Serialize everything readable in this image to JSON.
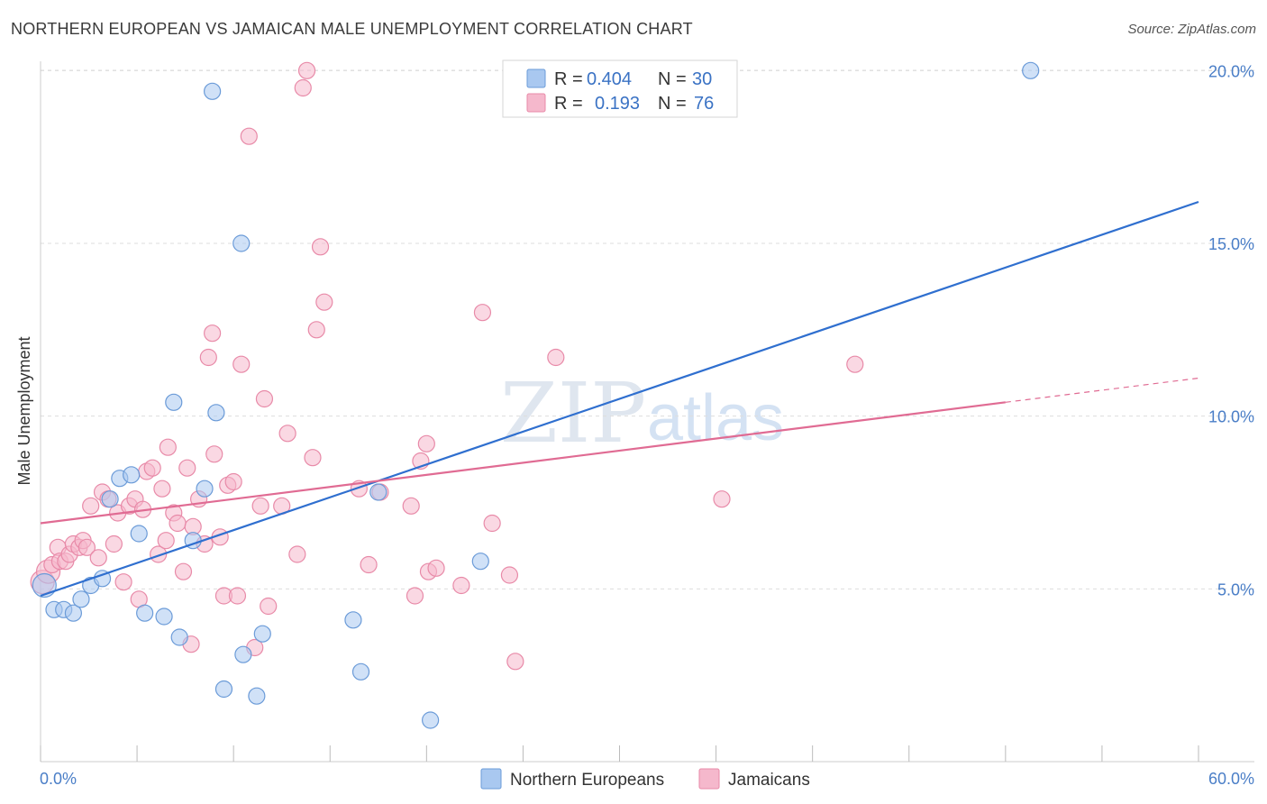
{
  "title": "NORTHERN EUROPEAN VS JAMAICAN MALE UNEMPLOYMENT CORRELATION CHART",
  "source": "Source: ZipAtlas.com",
  "watermark": {
    "zip": "ZIP",
    "atlas": "atlas"
  },
  "colors": {
    "blue_fill": "#a9c8f0",
    "blue_stroke": "#6b9bd8",
    "blue_line": "#2f6fcf",
    "pink_fill": "#f5b8cc",
    "pink_stroke": "#e88aa8",
    "pink_line": "#e06b93",
    "grid": "#dddddd",
    "tick_text": "#4a7ec7"
  },
  "legend": {
    "rows": [
      {
        "r_label": "R =",
        "r_value": "0.404",
        "n_label": "N =",
        "n_value": "30"
      },
      {
        "r_label": "R =",
        "r_value": "0.193",
        "n_label": "N =",
        "n_value": "76"
      }
    ]
  },
  "bottom_legend": {
    "series1": "Northern Europeans",
    "series2": "Jamaicans"
  },
  "chart_data": {
    "type": "scatter",
    "xlabel": "",
    "ylabel": "Male Unemployment",
    "x_tick_labels": [
      "0.0%",
      "60.0%"
    ],
    "y_tick_labels": [
      "5.0%",
      "10.0%",
      "15.0%",
      "20.0%"
    ],
    "y_ticks": [
      5,
      10,
      15,
      20
    ],
    "xlim": [
      0,
      60
    ],
    "ylim": [
      0,
      20.4
    ],
    "series": [
      {
        "name": "Northern Europeans",
        "color": "blue",
        "points": [
          [
            0.2,
            5.1
          ],
          [
            0.7,
            4.4
          ],
          [
            1.2,
            4.4
          ],
          [
            1.7,
            4.3
          ],
          [
            2.1,
            4.7
          ],
          [
            2.6,
            5.1
          ],
          [
            3.2,
            5.3
          ],
          [
            3.6,
            7.6
          ],
          [
            4.1,
            8.2
          ],
          [
            4.7,
            8.3
          ],
          [
            5.1,
            6.6
          ],
          [
            5.4,
            4.3
          ],
          [
            6.4,
            4.2
          ],
          [
            6.9,
            10.4
          ],
          [
            7.2,
            3.6
          ],
          [
            7.9,
            6.4
          ],
          [
            8.5,
            7.9
          ],
          [
            8.9,
            19.4
          ],
          [
            9.1,
            10.1
          ],
          [
            9.5,
            2.1
          ],
          [
            10.4,
            15.0
          ],
          [
            10.5,
            3.1
          ],
          [
            11.2,
            1.9
          ],
          [
            11.5,
            3.7
          ],
          [
            16.2,
            4.1
          ],
          [
            16.6,
            2.6
          ],
          [
            17.5,
            7.8
          ],
          [
            20.2,
            1.2
          ],
          [
            22.8,
            5.8
          ],
          [
            51.3,
            20.0
          ]
        ],
        "trend": {
          "x": [
            0,
            60
          ],
          "y": [
            4.8,
            16.2
          ]
        }
      },
      {
        "name": "Jamaicans",
        "color": "pink",
        "points": [
          [
            0.1,
            5.2
          ],
          [
            0.4,
            5.5
          ],
          [
            0.6,
            5.7
          ],
          [
            0.9,
            6.2
          ],
          [
            1.0,
            5.8
          ],
          [
            1.3,
            5.8
          ],
          [
            1.5,
            6.0
          ],
          [
            1.7,
            6.3
          ],
          [
            2.0,
            6.2
          ],
          [
            2.2,
            6.4
          ],
          [
            2.4,
            6.2
          ],
          [
            2.6,
            7.4
          ],
          [
            3.0,
            5.9
          ],
          [
            3.2,
            7.8
          ],
          [
            3.5,
            7.6
          ],
          [
            3.8,
            6.3
          ],
          [
            4.0,
            7.2
          ],
          [
            4.3,
            5.2
          ],
          [
            4.6,
            7.4
          ],
          [
            4.9,
            7.6
          ],
          [
            5.1,
            4.7
          ],
          [
            5.3,
            7.3
          ],
          [
            5.5,
            8.4
          ],
          [
            5.8,
            8.5
          ],
          [
            6.1,
            6.0
          ],
          [
            6.3,
            7.9
          ],
          [
            6.5,
            6.4
          ],
          [
            6.6,
            9.1
          ],
          [
            6.9,
            7.2
          ],
          [
            7.1,
            6.9
          ],
          [
            7.4,
            5.5
          ],
          [
            7.6,
            8.5
          ],
          [
            7.8,
            3.4
          ],
          [
            7.9,
            6.8
          ],
          [
            8.2,
            7.6
          ],
          [
            8.5,
            6.3
          ],
          [
            8.7,
            11.7
          ],
          [
            8.9,
            12.4
          ],
          [
            9.0,
            8.9
          ],
          [
            9.3,
            6.5
          ],
          [
            9.5,
            4.8
          ],
          [
            9.7,
            8.0
          ],
          [
            10.0,
            8.1
          ],
          [
            10.2,
            4.8
          ],
          [
            10.4,
            11.5
          ],
          [
            10.8,
            18.1
          ],
          [
            11.1,
            3.3
          ],
          [
            11.4,
            7.4
          ],
          [
            11.6,
            10.5
          ],
          [
            11.8,
            4.5
          ],
          [
            12.5,
            7.4
          ],
          [
            12.8,
            9.5
          ],
          [
            13.3,
            6.0
          ],
          [
            14.1,
            8.8
          ],
          [
            14.3,
            12.5
          ],
          [
            14.5,
            14.9
          ],
          [
            14.7,
            13.3
          ],
          [
            13.6,
            19.5
          ],
          [
            16.5,
            7.9
          ],
          [
            17.0,
            5.7
          ],
          [
            17.6,
            7.8
          ],
          [
            19.2,
            7.4
          ],
          [
            19.4,
            4.8
          ],
          [
            19.7,
            8.7
          ],
          [
            20.0,
            9.2
          ],
          [
            20.1,
            5.5
          ],
          [
            20.5,
            5.6
          ],
          [
            21.8,
            5.1
          ],
          [
            22.9,
            13.0
          ],
          [
            23.4,
            6.9
          ],
          [
            24.3,
            5.4
          ],
          [
            24.6,
            2.9
          ],
          [
            26.7,
            11.7
          ],
          [
            35.3,
            7.6
          ],
          [
            42.2,
            11.5
          ],
          [
            13.8,
            20.0
          ]
        ],
        "trend": {
          "x": [
            0,
            50
          ],
          "y": [
            6.9,
            10.4
          ]
        },
        "trend_extension": {
          "x": [
            50,
            60
          ],
          "y": [
            10.4,
            11.1
          ]
        }
      }
    ]
  }
}
